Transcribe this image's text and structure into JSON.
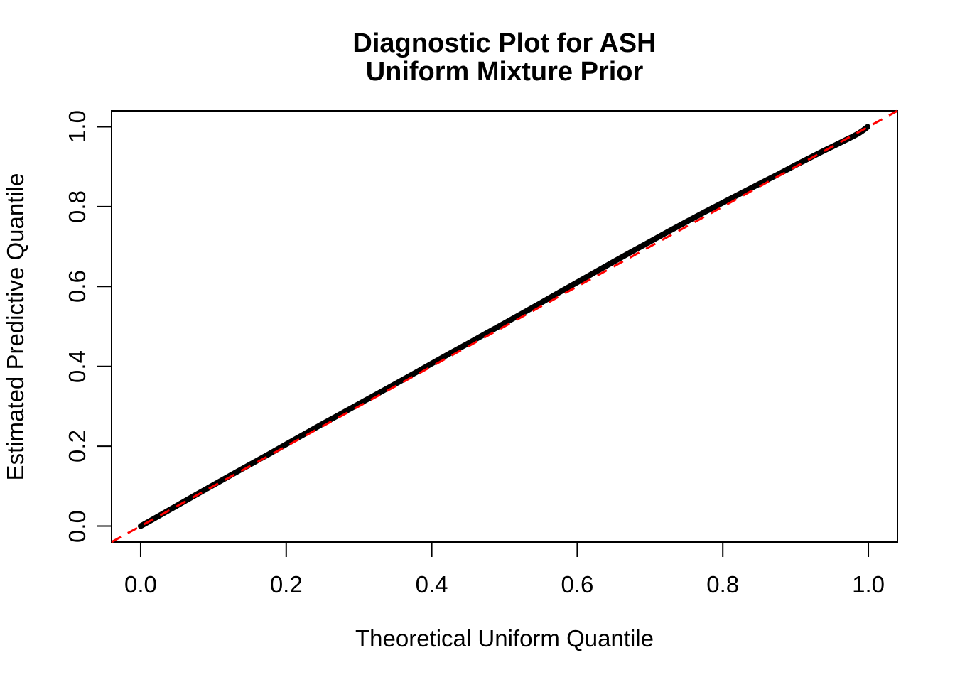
{
  "colors": {
    "background": "#ffffff",
    "text": "#000000",
    "curve": "#000000",
    "reference_line": "#ff0000",
    "axis": "#000000"
  },
  "chart_data": {
    "type": "line",
    "title_line1": "Diagnostic Plot for ASH",
    "title_line2": "Uniform Mixture Prior",
    "xlabel": "Theoretical Uniform Quantile",
    "ylabel": "Estimated Predictive Quantile",
    "xlim": [
      -0.04,
      1.04
    ],
    "ylim": [
      -0.04,
      1.04
    ],
    "grid": false,
    "legend": null,
    "x_ticks": {
      "values": [
        0.0,
        0.2,
        0.4,
        0.6,
        0.8,
        1.0
      ],
      "labels": [
        "0.0",
        "0.2",
        "0.4",
        "0.6",
        "0.8",
        "1.0"
      ]
    },
    "y_ticks": {
      "values": [
        0.0,
        0.2,
        0.4,
        0.6,
        0.8,
        1.0
      ],
      "labels": [
        "0.0",
        "0.2",
        "0.4",
        "0.6",
        "0.8",
        "1.0"
      ]
    },
    "series": [
      {
        "name": "estimated-vs-theoretical-quantiles",
        "color": "#000000",
        "style": "thick-point-line",
        "points": [
          [
            0.0,
            0.0
          ],
          [
            0.01,
            0.01
          ],
          [
            0.025,
            0.0255
          ],
          [
            0.05,
            0.0515
          ],
          [
            0.075,
            0.0775
          ],
          [
            0.1,
            0.103
          ],
          [
            0.125,
            0.1285
          ],
          [
            0.15,
            0.154
          ],
          [
            0.175,
            0.179
          ],
          [
            0.2,
            0.205
          ],
          [
            0.225,
            0.2305
          ],
          [
            0.25,
            0.256
          ],
          [
            0.275,
            0.281
          ],
          [
            0.3,
            0.306
          ],
          [
            0.325,
            0.331
          ],
          [
            0.35,
            0.356
          ],
          [
            0.375,
            0.3815
          ],
          [
            0.4,
            0.407
          ],
          [
            0.425,
            0.4325
          ],
          [
            0.45,
            0.4575
          ],
          [
            0.475,
            0.483
          ],
          [
            0.5,
            0.508
          ],
          [
            0.525,
            0.5335
          ],
          [
            0.55,
            0.559
          ],
          [
            0.575,
            0.585
          ],
          [
            0.6,
            0.6105
          ],
          [
            0.625,
            0.6365
          ],
          [
            0.65,
            0.662
          ],
          [
            0.675,
            0.6875
          ],
          [
            0.7,
            0.7125
          ],
          [
            0.725,
            0.7375
          ],
          [
            0.75,
            0.762
          ],
          [
            0.775,
            0.7865
          ],
          [
            0.8,
            0.81
          ],
          [
            0.825,
            0.8335
          ],
          [
            0.85,
            0.857
          ],
          [
            0.875,
            0.88
          ],
          [
            0.9,
            0.904
          ],
          [
            0.92,
            0.9225
          ],
          [
            0.94,
            0.941
          ],
          [
            0.955,
            0.9545
          ],
          [
            0.97,
            0.968
          ],
          [
            0.98,
            0.977
          ],
          [
            0.9875,
            0.9845
          ],
          [
            0.993,
            0.9915
          ],
          [
            0.997,
            0.997
          ],
          [
            0.999,
            1.0
          ]
        ]
      }
    ],
    "reference_line": {
      "name": "y-equals-x",
      "color": "#ff0000",
      "style": "dashed",
      "from": [
        -0.04,
        -0.04
      ],
      "to": [
        1.04,
        1.04
      ]
    }
  }
}
